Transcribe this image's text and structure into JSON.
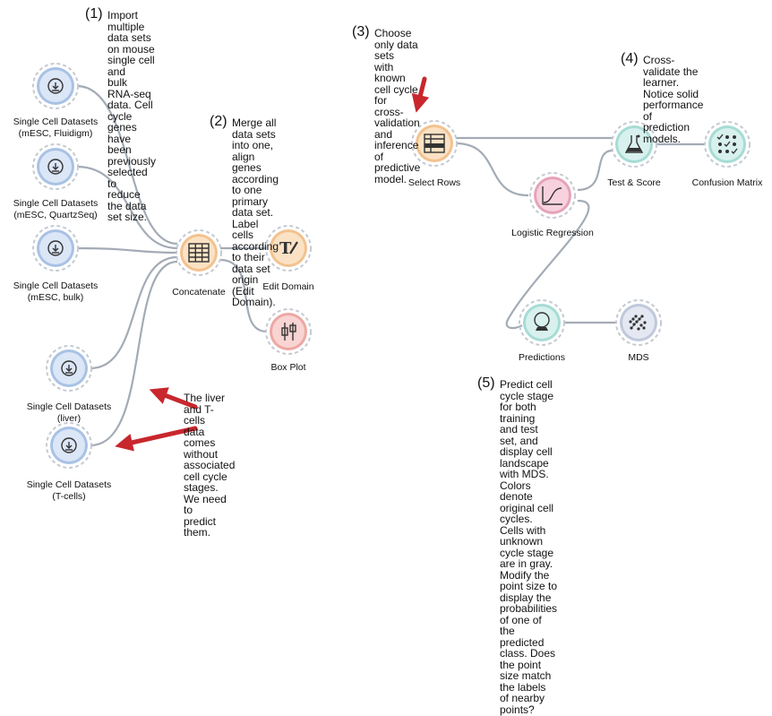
{
  "colors": {
    "link": "#a3abb5",
    "data_widget": "#dbe6f6",
    "data_ring": "#a8c2e4",
    "transform_widget": "#fbe2c4",
    "transform_ring": "#f2c28f",
    "model_widget": "#f7d2de",
    "model_ring": "#e6a3b8",
    "eval_widget": "#d8f1ee",
    "eval_ring": "#a6dcd5",
    "visual_widget": "#f9d4d2",
    "visual_ring": "#eda8a4",
    "unsup_widget": "#e4e8f2",
    "unsup_ring": "#c0c8db",
    "arrow": "#c8272d"
  },
  "nodes": {
    "sc1": {
      "label_lines": [
        "Single Cell Datasets",
        "(mESC, Fluidigm)"
      ],
      "icon": "download-icon"
    },
    "sc2": {
      "label_lines": [
        "Single Cell Datasets",
        "(mESC, QuartzSeq)"
      ],
      "icon": "download-icon"
    },
    "sc3": {
      "label_lines": [
        "Single Cell Datasets",
        "(mESC, bulk)"
      ],
      "icon": "download-icon"
    },
    "sc4": {
      "label_lines": [
        "Single Cell Datasets",
        "(liver)"
      ],
      "icon": "download-icon"
    },
    "sc5": {
      "label_lines": [
        "Single Cell Datasets",
        "(T-cells)"
      ],
      "icon": "download-icon"
    },
    "concatenate": {
      "label_lines": [
        "Concatenate"
      ],
      "icon": "concatenate-icon"
    },
    "edit_domain": {
      "label_lines": [
        "Edit Domain"
      ],
      "icon": "edit-domain-icon"
    },
    "box_plot": {
      "label_lines": [
        "Box Plot"
      ],
      "icon": "box-plot-icon"
    },
    "select_rows": {
      "label_lines": [
        "Select Rows"
      ],
      "icon": "select-rows-icon"
    },
    "logistic_regression": {
      "label_lines": [
        "Logistic Regression"
      ],
      "icon": "sigmoid-icon"
    },
    "test_score": {
      "label_lines": [
        "Test & Score"
      ],
      "icon": "flask-icon"
    },
    "confusion_matrix": {
      "label_lines": [
        "Confusion Matrix"
      ],
      "icon": "confusion-matrix-icon"
    },
    "predictions": {
      "label_lines": [
        "Predictions"
      ],
      "icon": "crystal-ball-icon"
    },
    "mds": {
      "label_lines": [
        "MDS"
      ],
      "icon": "mds-scatter-icon"
    }
  },
  "notes": {
    "n1": {
      "number": "(1)",
      "lines": [
        "Import multiple data sets",
        "on mouse single cell and",
        "bulk RNA-seq data. Cell",
        "cycle genes have been",
        "previously selected to",
        "reduce the data set size."
      ]
    },
    "n2": {
      "number": "(2)",
      "lines": [
        "Merge all data sets",
        "into one, align genes",
        "according to one",
        "primary data set.",
        "Label cells according",
        "to their data set origin",
        "(Edit Domain)."
      ]
    },
    "n3": {
      "number": "(3)",
      "lines": [
        "Choose only data sets",
        "with known cell cycle for",
        "cross-validation and",
        "inference of predictive",
        "model."
      ]
    },
    "n4": {
      "number": "(4)",
      "lines": [
        "Cross-validate the",
        "learner. Notice solid",
        "performance of",
        "prediction models."
      ]
    },
    "n5": {
      "number": "(5)",
      "lines": [
        "Predict cell cycle stage for both training",
        "and test set, and display cell landscape",
        "with MDS. Colors denote original cell",
        "cycles. Cells with unknown cycle stage",
        "are in gray. Modify the point size to",
        "display the probabilities of one of the",
        "predicted class. Does the point size match",
        "the labels of nearby points?"
      ]
    },
    "liver": {
      "number": "",
      "lines": [
        "The liver and T-cells",
        "data comes without",
        "associated cell cycle",
        "stages. We need to",
        "predict them."
      ]
    }
  }
}
